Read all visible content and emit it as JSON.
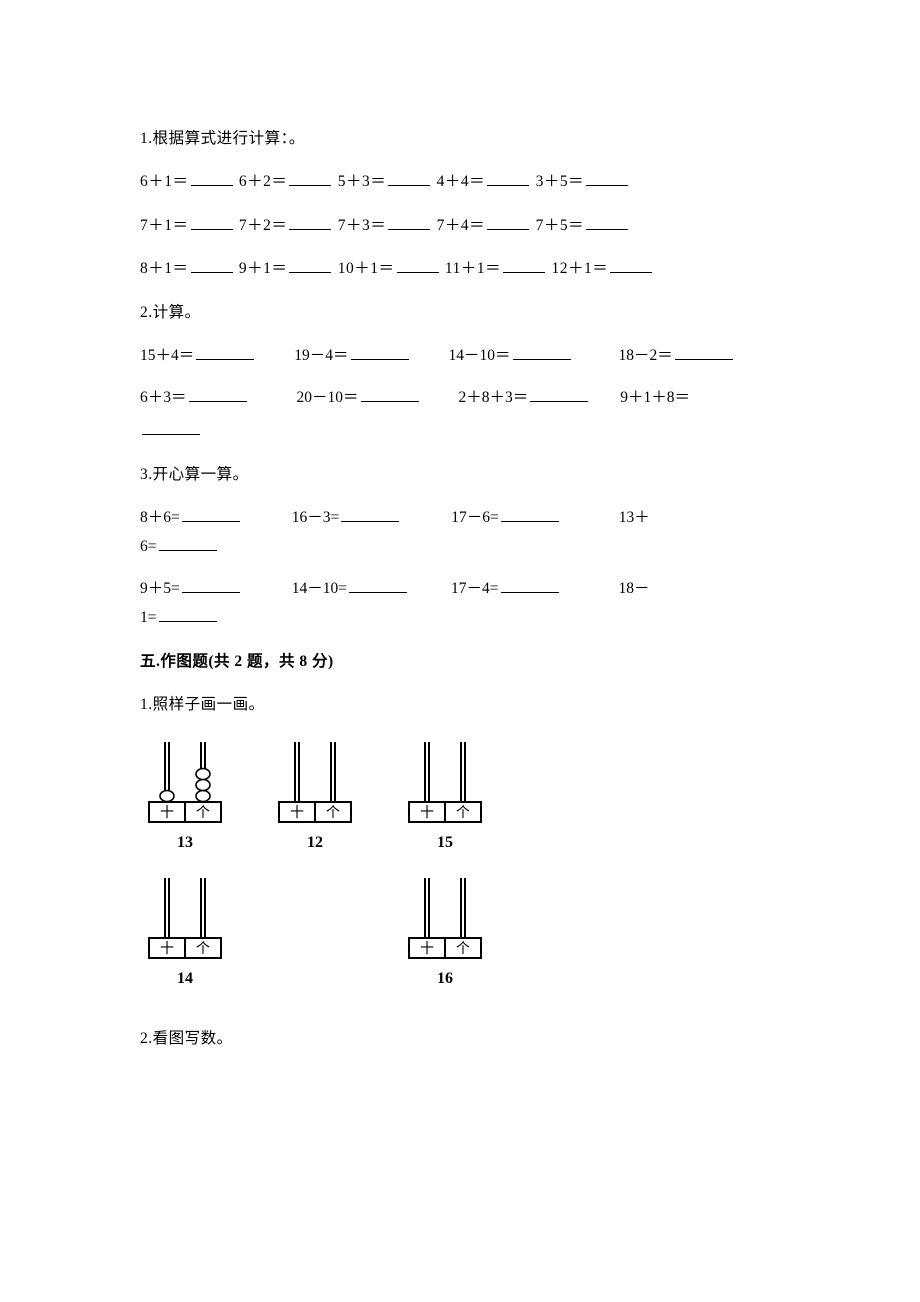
{
  "q1": {
    "title": "1.根据算式进行计算：。",
    "rows": [
      [
        {
          "expr": "6＋1＝",
          "blank": 42
        },
        {
          "expr": " 6＋2＝",
          "blank": 42
        },
        {
          "expr": " 5＋3＝",
          "blank": 42
        },
        {
          "expr": "  4＋4＝",
          "blank": 42
        },
        {
          "expr": "  3＋5＝",
          "blank": 42
        }
      ],
      [
        {
          "expr": "7＋1＝",
          "blank": 42
        },
        {
          "expr": " 7＋2＝",
          "blank": 42
        },
        {
          "expr": " 7＋3＝",
          "blank": 42
        },
        {
          "expr": "  7＋4＝",
          "blank": 42
        },
        {
          "expr": "  7＋5＝",
          "blank": 42
        }
      ],
      [
        {
          "expr": "8＋1＝",
          "blank": 42
        },
        {
          "expr": " 9＋1＝",
          "blank": 42
        },
        {
          "expr": " 10＋1＝",
          "blank": 42
        },
        {
          "expr": " 11＋1＝",
          "blank": 42
        },
        {
          "expr": " 12＋1＝",
          "blank": 42
        }
      ]
    ]
  },
  "q2": {
    "title": "2.计算。",
    "rows": [
      [
        {
          "expr": "15＋4＝",
          "blank": 58,
          "pad": 0
        },
        {
          "expr": "19－4＝",
          "blank": 58,
          "pad": 38
        },
        {
          "expr": "14－10＝",
          "blank": 58,
          "pad": 38
        },
        {
          "expr": "18－2＝",
          "blank": 58,
          "pad": 46
        }
      ],
      [
        {
          "expr": "6＋3＝",
          "blank": 58,
          "pad": 0
        },
        {
          "expr": "20－10＝",
          "blank": 58,
          "pad": 48
        },
        {
          "expr": "2＋8＋3＝",
          "blank": 58,
          "pad": 38
        },
        {
          "expr": "9＋1＋8＝",
          "blank": 0,
          "pad": 30
        }
      ]
    ],
    "trailing_blank": 58
  },
  "q3": {
    "title": "3.开心算一算。",
    "rows": [
      {
        "cells": [
          {
            "expr": "8＋6=",
            "blank": 58,
            "pad": 0
          },
          {
            "expr": "16－3=",
            "blank": 58,
            "pad": 50
          },
          {
            "expr": "17－6=",
            "blank": 58,
            "pad": 50
          },
          {
            "expr": "13＋",
            "blank": 0,
            "pad": 58
          }
        ],
        "wrap": {
          "expr": "6=",
          "blank": 58
        }
      },
      {
        "cells": [
          {
            "expr": "9＋5=",
            "blank": 58,
            "pad": 0
          },
          {
            "expr": "14－10=",
            "blank": 58,
            "pad": 50
          },
          {
            "expr": "17－4=",
            "blank": 58,
            "pad": 42
          },
          {
            "expr": "18－",
            "blank": 0,
            "pad": 58
          }
        ],
        "wrap": {
          "expr": "1=",
          "blank": 58
        }
      }
    ]
  },
  "section5": {
    "heading": "五.作图题(共 2 题，共 8 分)",
    "q1": {
      "title": "1.照样子画一画。",
      "abacus": {
        "row1": [
          {
            "number": "13",
            "tens_beads": 1,
            "ones_beads": 3
          },
          {
            "number": "12",
            "tens_beads": 0,
            "ones_beads": 0
          },
          {
            "number": "15",
            "tens_beads": 0,
            "ones_beads": 0
          }
        ],
        "row2": [
          {
            "number": "14",
            "tens_beads": 0,
            "ones_beads": 0
          },
          {
            "number": "16",
            "tens_beads": 0,
            "ones_beads": 0
          }
        ],
        "row2_gap_index": 1,
        "left_label": "十",
        "right_label": "个",
        "colors": {
          "stroke": "#000000",
          "fill_box": "#ffffff",
          "bead_fill": "#ffffff"
        }
      }
    },
    "q2": {
      "title": "2.看图写数。"
    }
  }
}
